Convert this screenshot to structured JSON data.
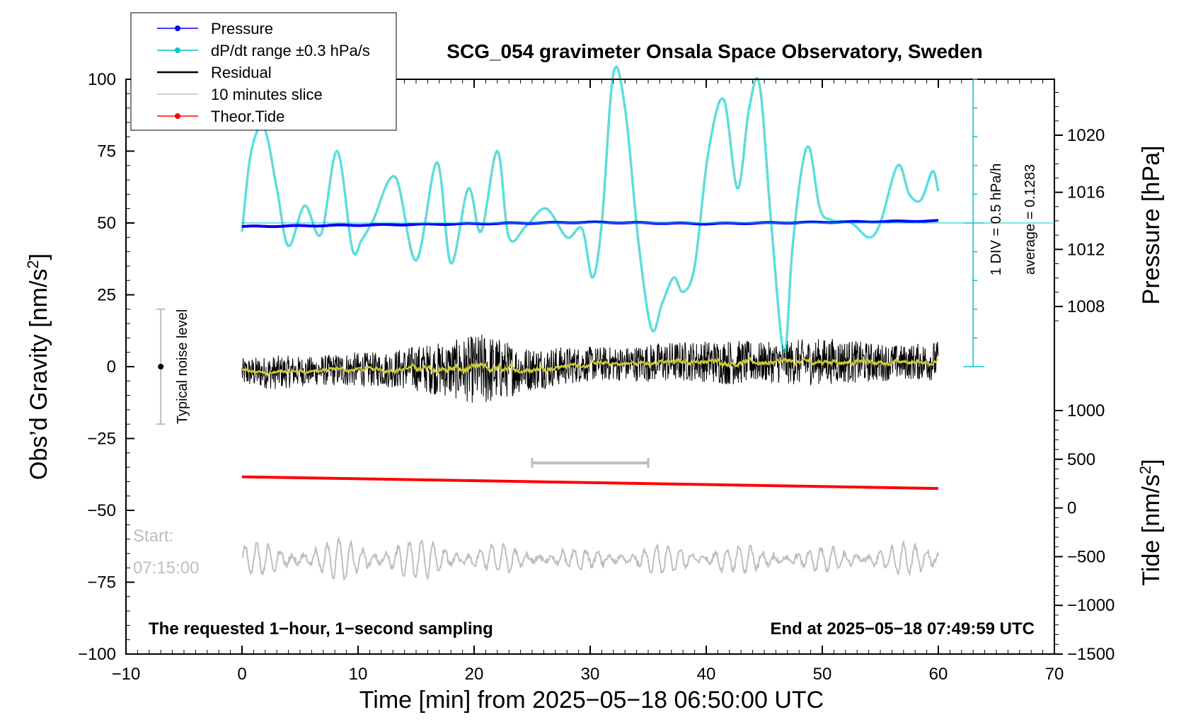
{
  "chart_data": {
    "type": "line",
    "title": "SCG_054 gravimeter Onsala Space Observatory, Sweden",
    "xlabel": "Time [min] from 2025−05−18 06:50:00 UTC",
    "ylabel_left": "Obs’d Gravity [nm/s²]",
    "ylabel_left_main": "Obs’d Gravity [nm/s",
    "ylabel_left_sup": "2",
    "ylabel_left_end": "]",
    "ylabel_right_pressure": "Pressure [hPa]",
    "ylabel_right_tide_main": "Tide [nm/s",
    "ylabel_right_tide_sup": "2",
    "ylabel_right_tide_end": "]",
    "xlim": [
      -10,
      70
    ],
    "ylim": [
      -100,
      100
    ],
    "x_ticks": [
      "−10",
      "0",
      "10",
      "20",
      "30",
      "40",
      "50",
      "60",
      "70"
    ],
    "y_ticks": [
      "100",
      "75",
      "50",
      "25",
      "0",
      "−25",
      "−50",
      "−75",
      "−100"
    ],
    "pressure_ticks": [
      "1020",
      "1016",
      "1012",
      "1008"
    ],
    "pressure_tick_values": [
      1020,
      1016,
      1012,
      1008
    ],
    "tide_ticks": [
      "1000",
      "500",
      "0",
      "−500",
      "−1000",
      "−1500"
    ],
    "tide_tick_values": [
      1000,
      500,
      0,
      -500,
      -1000,
      -1500
    ],
    "legend": [
      {
        "label": "Pressure",
        "color": "#0000ff",
        "marker": true
      },
      {
        "label": "dP/dt range ±0.3 hPa/s",
        "color": "#00c8c8",
        "marker": true
      },
      {
        "label": "Residual",
        "color": "#000000",
        "marker": false
      },
      {
        "label": "10 minutes slice",
        "color": "#bebebe",
        "marker": false
      },
      {
        "label": "Theor.Tide",
        "color": "#ff0000",
        "marker": true
      }
    ],
    "annotations": {
      "noise_label": "Typical noise level",
      "noise_range": [
        -20,
        20
      ],
      "scale_div": "1 DIV = 0.5 hPa/h",
      "scale_avg": "average = 0.1283",
      "start_label": "Start:",
      "start_time": "07:15:00",
      "bottom_left": "The requested 1−hour, 1−second sampling",
      "bottom_right": "End at 2025−05−18 07:49:59 UTC",
      "slice_range_min": [
        25,
        35
      ]
    },
    "series": [
      {
        "name": "Pressure",
        "color": "#0000ff",
        "axis": "pressure_hPa",
        "x": [
          0,
          10,
          20,
          30,
          40,
          50,
          60
        ],
        "y": [
          1013.6,
          1013.7,
          1013.8,
          1013.9,
          1013.8,
          1013.9,
          1014.0
        ]
      },
      {
        "name": "dP/dt range ±0.3 hPa/s",
        "color": "#00c8c8",
        "axis": "left",
        "x": [
          0,
          0.8,
          1.9,
          3.0,
          4.0,
          5.4,
          6.8,
          8.2,
          9.5,
          10.3,
          11.3,
          13.2,
          15.0,
          16.8,
          18.0,
          19.5,
          20.6,
          22.0,
          23.0,
          24.5,
          26.2,
          28.0,
          29.3,
          30.2,
          31.0,
          32.0,
          33.0,
          34.2,
          35.3,
          36.2,
          37.2,
          38.0,
          39.0,
          40.2,
          41.5,
          42.7,
          43.7,
          44.6,
          45.6,
          46.7,
          47.4,
          48.2,
          48.9,
          49.8,
          50.8,
          52.5,
          54.0,
          55.0,
          56.5,
          57.5,
          58.5,
          59.5,
          60.0
        ],
        "y": [
          47,
          75,
          83,
          62,
          42,
          56,
          46,
          75,
          41,
          44,
          51,
          66,
          37,
          71,
          36,
          62,
          47,
          75,
          45,
          49,
          55,
          45,
          48,
          31,
          50,
          102,
          90,
          42,
          13,
          22,
          31,
          26,
          35,
          75,
          93,
          62,
          90,
          98,
          50,
          5,
          40,
          68,
          76,
          55,
          51,
          50,
          45,
          50,
          70,
          60,
          58,
          68,
          61
        ]
      },
      {
        "name": "Residual",
        "color": "#000000",
        "axis": "left",
        "amplitude": [
          5,
          6,
          5,
          6,
          6,
          8,
          10,
          13,
          8,
          7,
          6,
          6,
          7,
          7,
          8,
          7,
          8,
          8,
          7,
          6,
          7
        ],
        "trend": [
          -2,
          -2,
          -1.5,
          -1,
          -1,
          -0.5,
          -1,
          -1,
          -1,
          0,
          1,
          1,
          1.5,
          2,
          1.5,
          1.5,
          1.5,
          2,
          1.5,
          1.5,
          2
        ]
      },
      {
        "name": "10 minutes slice",
        "color": "#bebebe",
        "axis": "left",
        "center": -67,
        "amplitude": [
          5,
          6,
          6,
          7,
          7,
          7,
          6,
          5,
          4,
          4,
          3,
          4,
          5,
          5,
          5,
          4,
          4,
          4,
          4,
          5,
          5
        ]
      },
      {
        "name": "Theor.Tide",
        "color": "#ff0000",
        "axis": "tide_nm_s2",
        "x": [
          0,
          60
        ],
        "y": [
          320,
          200
        ]
      }
    ]
  }
}
